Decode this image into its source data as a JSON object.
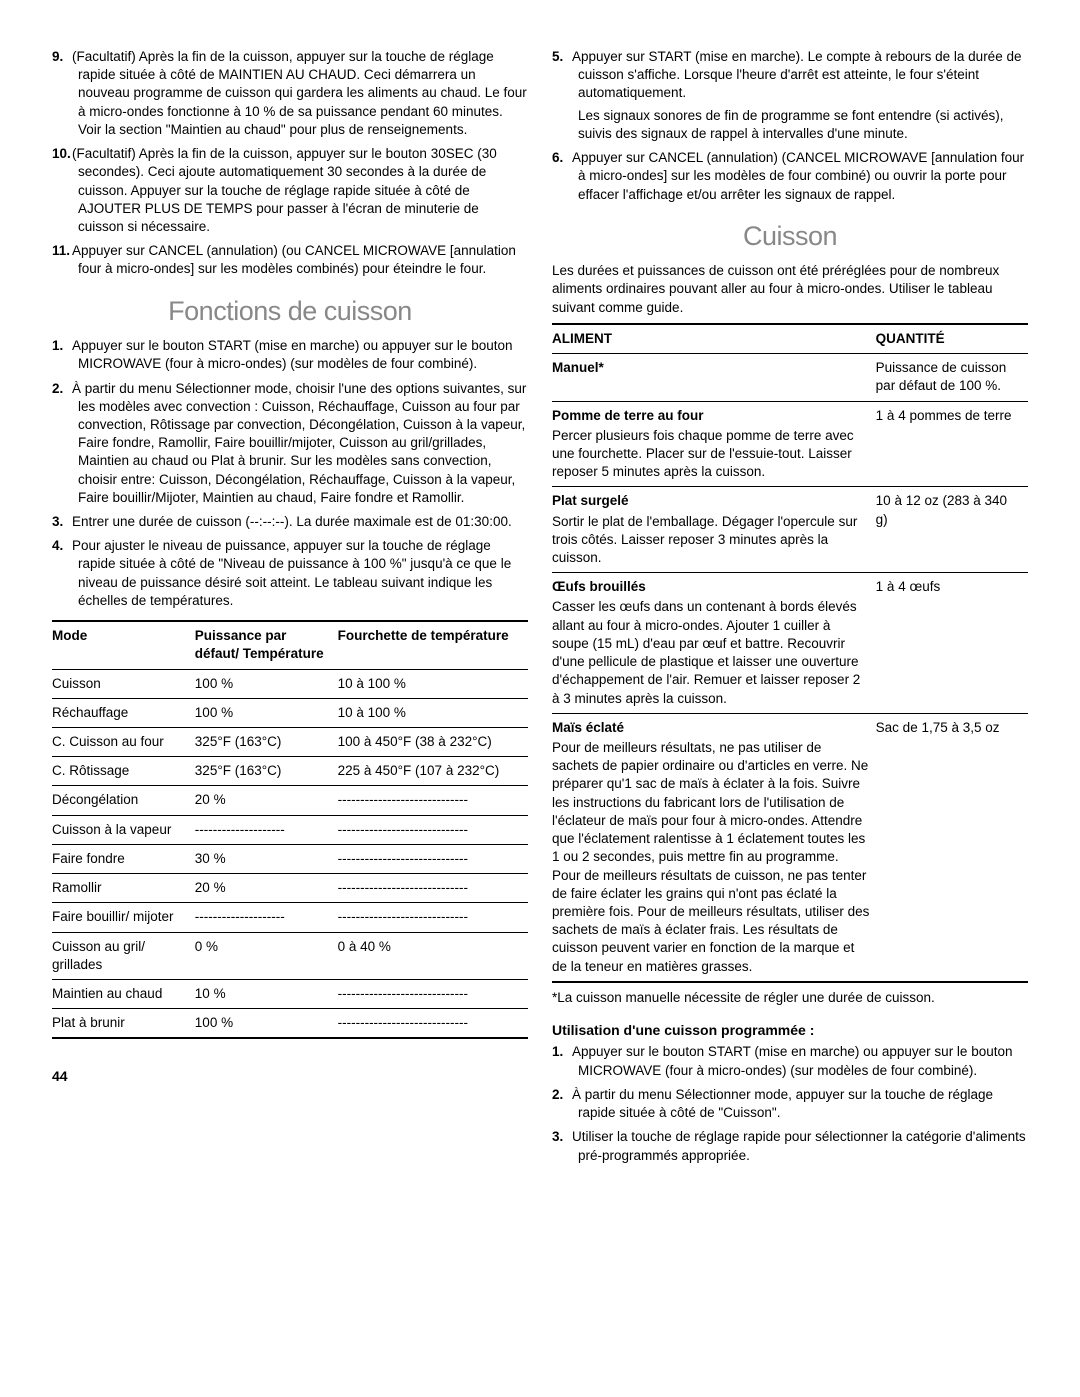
{
  "left": {
    "intro_items": [
      {
        "n": "9.",
        "text": "(Facultatif) Après la fin de la cuisson, appuyer sur la touche de réglage rapide située à côté de MAINTIEN AU CHAUD. Ceci démarrera un nouveau programme de cuisson qui gardera les aliments au chaud. Le four à micro-ondes fonctionne à 10 % de sa puissance pendant 60 minutes. Voir la section \"Maintien au chaud\" pour plus de renseignements."
      },
      {
        "n": "10.",
        "text": "(Facultatif) Après la fin de la cuisson, appuyer sur le bouton 30SEC (30 secondes). Ceci ajoute automatiquement 30 secondes à la durée de cuisson. Appuyer sur la touche de réglage rapide située à côté de AJOUTER PLUS DE TEMPS pour passer à l'écran de minuterie de cuisson si nécessaire."
      },
      {
        "n": "11.",
        "text": "Appuyer sur CANCEL (annulation) (ou CANCEL MICROWAVE [annulation four à micro-ondes] sur les modèles combinés) pour éteindre le four."
      }
    ],
    "section_title": "Fonctions de cuisson",
    "fonctions_items": [
      {
        "n": "1.",
        "text": "Appuyer sur le bouton START (mise en marche) ou appuyer sur le bouton MICROWAVE (four à micro-ondes) (sur modèles de four combiné)."
      },
      {
        "n": "2.",
        "text": "À partir du menu Sélectionner mode, choisir l'une des options suivantes, sur les modèles avec convection : Cuisson, Réchauffage, Cuisson au four par convection, Rôtissage par convection, Décongélation, Cuisson à la vapeur, Faire fondre, Ramollir, Faire bouillir/mijoter, Cuisson au gril/grillades, Maintien au chaud ou Plat à brunir. Sur les modèles sans convection, choisir entre: Cuisson, Décongélation, Réchauffage, Cuisson à la vapeur, Faire bouillir/Mijoter, Maintien au chaud, Faire fondre et Ramollir."
      },
      {
        "n": "3.",
        "text": "Entrer une durée de cuisson (--:--:--). La durée maximale est de 01:30:00."
      },
      {
        "n": "4.",
        "text": "Pour ajuster le niveau de puissance, appuyer sur la touche de réglage rapide située à côté de \"Niveau de puissance à 100 %\" jusqu'à ce que le niveau de puissance désiré soit atteint. Le tableau suivant indique les échelles de températures."
      }
    ],
    "modes_table": {
      "headers": [
        "Mode",
        "Puissance par défaut/ Température",
        "Fourchette de température"
      ],
      "rows": [
        [
          "Cuisson",
          "100 %",
          "10 à 100 %"
        ],
        [
          "Réchauffage",
          "100 %",
          "10 à 100 %"
        ],
        [
          "C. Cuisson au four",
          "325°F (163°C)",
          "100 à 450°F (38 à 232°C)"
        ],
        [
          "C. Rôtissage",
          "325°F (163°C)",
          "225 à 450°F (107 à 232°C)"
        ],
        [
          "Décongélation",
          "20 %",
          "-----------------------------"
        ],
        [
          "Cuisson à la vapeur",
          "--------------------",
          "-----------------------------"
        ],
        [
          "Faire fondre",
          "30 %",
          "-----------------------------"
        ],
        [
          "Ramollir",
          "20 %",
          "-----------------------------"
        ],
        [
          "Faire bouillir/ mijoter",
          "--------------------",
          "-----------------------------"
        ],
        [
          "Cuisson au gril/ grillades",
          "0 %",
          "0 à 40 %"
        ],
        [
          "Maintien au chaud",
          "10 %",
          "-----------------------------"
        ],
        [
          "Plat à brunir",
          "100 %",
          "-----------------------------"
        ]
      ]
    }
  },
  "right": {
    "intro_items": [
      {
        "n": "5.",
        "text": "Appuyer sur START (mise en marche). Le compte à rebours de la durée de cuisson s'affiche. Lorsque l'heure d'arrêt est atteinte, le four s'éteint automatiquement.",
        "extra": "Les signaux sonores de fin de programme se font entendre (si activés), suivis des signaux de rappel à intervalles d'une minute."
      },
      {
        "n": "6.",
        "text": "Appuyer sur CANCEL (annulation) (CANCEL MICROWAVE [annulation four à micro-ondes] sur les modèles de four combiné) ou ouvrir la porte pour effacer l'affichage et/ou arrêter les signaux de rappel."
      }
    ],
    "section_title": "Cuisson",
    "intro_para": "Les durées et puissances de cuisson ont été préréglées pour de nombreux aliments ordinaires pouvant aller au four à micro-ondes. Utiliser le tableau suivant comme guide.",
    "food_table": {
      "headers": [
        "ALIMENT",
        "QUANTITÉ"
      ],
      "rows": [
        {
          "title": "Manuel*",
          "desc": "",
          "qty": "Puissance de cuisson par défaut de 100 %."
        },
        {
          "title": "Pomme de terre au four",
          "desc": "Percer plusieurs fois chaque pomme de terre avec une fourchette. Placer sur de l'essuie-tout. Laisser reposer 5 minutes après la cuisson.",
          "qty": "1 à 4 pommes de terre"
        },
        {
          "title": "Plat surgelé",
          "desc": "Sortir le plat de l'emballage. Dégager l'opercule sur trois côtés. Laisser reposer 3 minutes après la cuisson.",
          "qty": "10 à 12 oz (283 à 340 g)"
        },
        {
          "title": "Œufs brouillés",
          "desc": "Casser les œufs dans un contenant à bords élevés allant au four à micro-ondes. Ajouter 1 cuiller à soupe (15 mL) d'eau par œuf et battre. Recouvrir d'une pellicule de plastique et laisser une ouverture d'échappement de l'air. Remuer et laisser reposer 2 à 3 minutes après la cuisson.",
          "qty": "1 à 4 œufs"
        },
        {
          "title": "Maïs éclaté",
          "desc": "Pour de meilleurs résultats, ne pas utiliser de sachets de papier ordinaire ou d'articles en verre. Ne préparer qu'1 sac de maïs à éclater à la fois. Suivre les instructions du fabricant lors de l'utilisation de l'éclateur de maïs pour four à micro-ondes. Attendre que l'éclatement ralentisse à 1 éclatement toutes les 1 ou 2 secondes, puis mettre fin au programme. Pour de meilleurs résultats de cuisson, ne pas tenter de faire éclater les grains qui n'ont pas éclaté la première fois. Pour de meilleurs résultats, utiliser des sachets de maïs à éclater frais. Les résultats de cuisson peuvent varier en fonction de la marque et de la teneur en matières grasses.",
          "qty": "Sac de 1,75 à 3,5 oz"
        }
      ]
    },
    "footnote": "*La cuisson manuelle nécessite de régler une durée de cuisson.",
    "subhead": "Utilisation d'une cuisson programmée :",
    "steps": [
      {
        "n": "1.",
        "text": "Appuyer sur le bouton START (mise en marche) ou appuyer sur le bouton MICROWAVE (four à micro-ondes) (sur modèles de four combiné)."
      },
      {
        "n": "2.",
        "text": "À partir du menu Sélectionner mode, appuyer sur la touche de réglage rapide située à côté de \"Cuisson\"."
      },
      {
        "n": "3.",
        "text": "Utiliser la touche de réglage rapide pour sélectionner la catégorie d'aliments pré-programmés appropriée."
      }
    ]
  },
  "page_number": "44"
}
